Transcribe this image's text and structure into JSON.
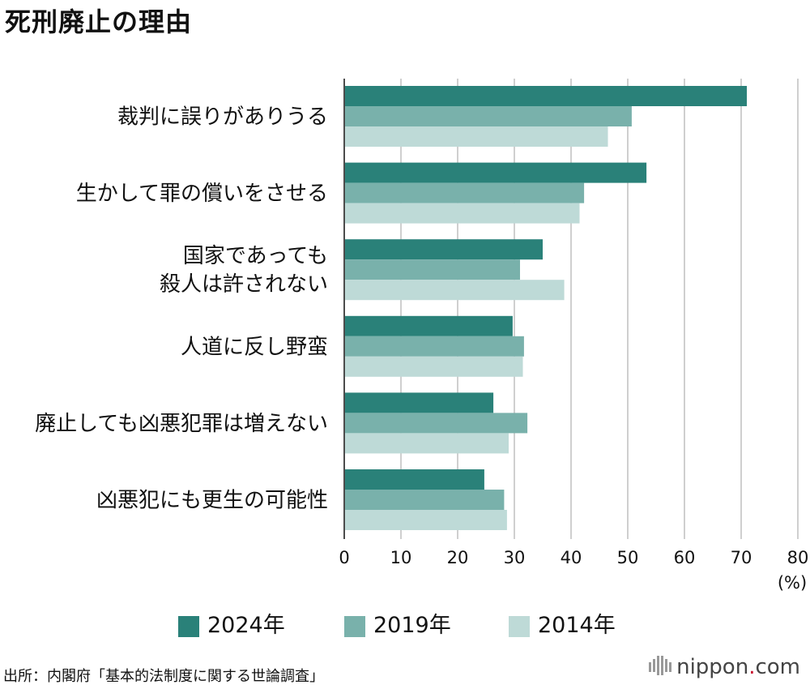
{
  "title": "死刑廃止の理由",
  "chart_data": {
    "type": "bar",
    "orientation": "horizontal",
    "title": "死刑廃止の理由",
    "categories": [
      [
        "裁判に誤りがありうる"
      ],
      [
        "生かして罪の償いをさせる"
      ],
      [
        "国家であっても",
        "殺人は許されない"
      ],
      [
        "人道に反し野蛮"
      ],
      [
        "廃止しても凶悪犯罪は増えない"
      ],
      [
        "凶悪犯にも更生の可能性"
      ]
    ],
    "series": [
      {
        "name": "2024年",
        "color": "#2a8179",
        "values": [
          71.0,
          53.3,
          35.0,
          29.7,
          26.3,
          24.7
        ]
      },
      {
        "name": "2019年",
        "color": "#79b1ab",
        "values": [
          50.7,
          42.3,
          31.0,
          31.7,
          32.3,
          28.2
        ]
      },
      {
        "name": "2014年",
        "color": "#bedad7",
        "values": [
          46.5,
          41.5,
          38.8,
          31.5,
          29.0,
          28.7
        ]
      }
    ],
    "xlim": [
      0,
      80
    ],
    "xticks": [
      "0",
      "10",
      "20",
      "30",
      "40",
      "50",
      "60",
      "70",
      "80"
    ],
    "xlabel": "(%)",
    "grid": true,
    "legend_position": "bottom"
  },
  "source": "出所：内閣府「基本的法制度に関する世論調査」",
  "brand": {
    "name": "nippon",
    "dot": ".",
    "tld": "com"
  }
}
